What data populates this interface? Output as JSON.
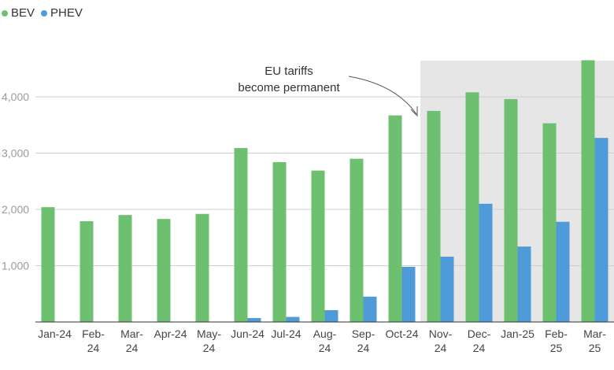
{
  "chart_data": {
    "type": "bar",
    "categories": [
      "Jan-24",
      "Feb-24",
      "Mar-24",
      "Apr-24",
      "May-24",
      "Jun-24",
      "Jul-24",
      "Aug-24",
      "Sep-24",
      "Oct-24",
      "Nov-24",
      "Dec-24",
      "Jan-25",
      "Feb-25",
      "Mar-25"
    ],
    "tick_labels": [
      [
        "Jan-24"
      ],
      [
        "Feb-",
        "24"
      ],
      [
        "Mar-",
        "24"
      ],
      [
        "Apr-24"
      ],
      [
        "May-",
        "24"
      ],
      [
        "Jun-24"
      ],
      [
        "Jul-24"
      ],
      [
        "Aug-",
        "24"
      ],
      [
        "Sep-",
        "24"
      ],
      [
        "Oct-24"
      ],
      [
        "Nov-",
        "24"
      ],
      [
        "Dec-",
        "24"
      ],
      [
        "Jan-25"
      ],
      [
        "Feb-",
        "25"
      ],
      [
        "Mar-",
        "25"
      ]
    ],
    "series": [
      {
        "name": "BEV",
        "color": "#6cc070",
        "values": [
          2040,
          1790,
          1900,
          1830,
          1920,
          3090,
          2840,
          2690,
          2900,
          3670,
          3750,
          4080,
          3960,
          3530,
          4650
        ]
      },
      {
        "name": "PHEV",
        "color": "#4f9bd9",
        "values": [
          0,
          0,
          0,
          0,
          0,
          70,
          90,
          210,
          450,
          980,
          1160,
          2100,
          1340,
          1780,
          3270
        ]
      }
    ],
    "y_ticks": [
      "1,000",
      "2,000",
      "3,000",
      "4,000"
    ],
    "y_tick_values": [
      1000,
      2000,
      3000,
      4000
    ],
    "ylim": [
      0,
      4600
    ],
    "grid": true,
    "legend": "top-left",
    "shaded_categories": [
      "Nov-24",
      "Dec-24",
      "Jan-25",
      "Feb-25",
      "Mar-25"
    ],
    "annotation": {
      "lines": [
        "EU tariffs",
        "become permanent"
      ],
      "points_to": "Nov-24"
    }
  }
}
